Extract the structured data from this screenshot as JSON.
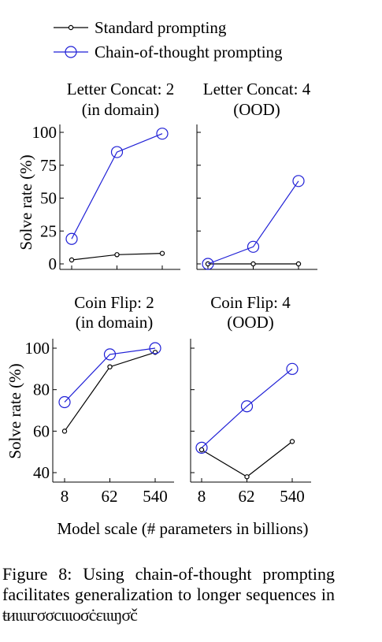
{
  "legend": [
    {
      "label": "Standard prompting",
      "color": "#000000",
      "marker": "small-dot"
    },
    {
      "label": "Chain-of-thought prompting",
      "color": "#1f1fd6",
      "marker": "open-circle"
    }
  ],
  "chart_data": [
    {
      "type": "line",
      "title": [
        "Letter Concat: 2",
        "(in domain)"
      ],
      "x_categories": [
        "8",
        "62",
        "540"
      ],
      "ylabel": "Solve rate (%)",
      "ylim": [
        0,
        100
      ],
      "yticks": [
        "0",
        "25",
        "50",
        "75",
        "100"
      ],
      "series": [
        {
          "name": "Standard prompting",
          "values": [
            3,
            7,
            8
          ]
        },
        {
          "name": "Chain-of-thought prompting",
          "values": [
            19,
            85,
            99
          ]
        }
      ]
    },
    {
      "type": "line",
      "title": [
        "Letter Concat: 4",
        "(OOD)"
      ],
      "x_categories": [
        "8",
        "62",
        "540"
      ],
      "ylabel": "",
      "ylim": [
        0,
        100
      ],
      "yticks": [],
      "series": [
        {
          "name": "Standard prompting",
          "values": [
            0,
            0,
            0
          ]
        },
        {
          "name": "Chain-of-thought prompting",
          "values": [
            0,
            13,
            63
          ]
        }
      ]
    },
    {
      "type": "line",
      "title": [
        "Coin Flip: 2",
        "(in domain)"
      ],
      "x_categories": [
        "8",
        "62",
        "540"
      ],
      "ylabel": "Solve rate (%)",
      "ylim": [
        37,
        100
      ],
      "yticks": [
        "40",
        "60",
        "80",
        "100"
      ],
      "series": [
        {
          "name": "Standard prompting",
          "values": [
            60,
            91,
            98
          ]
        },
        {
          "name": "Chain-of-thought prompting",
          "values": [
            74,
            97,
            100
          ]
        }
      ]
    },
    {
      "type": "line",
      "title": [
        "Coin Flip: 4",
        "(OOD)"
      ],
      "x_categories": [
        "8",
        "62",
        "540"
      ],
      "ylabel": "",
      "ylim": [
        37,
        100
      ],
      "yticks": [],
      "series": [
        {
          "name": "Standard prompting",
          "values": [
            51,
            38,
            55
          ]
        },
        {
          "name": "Chain-of-thought prompting",
          "values": [
            52,
            72,
            90
          ]
        }
      ]
    }
  ],
  "x_tick_labels": [
    "8",
    "62",
    "540"
  ],
  "xlabel": "Model scale (# parameters in billions)",
  "caption": {
    "label": "Figure 8:",
    "text": "Using chain-of-thought prompting facilitates generalization to longer sequences in",
    "garbled_tail": "ŧиιιιιгσσcιιιоσċειιιŋσč"
  }
}
